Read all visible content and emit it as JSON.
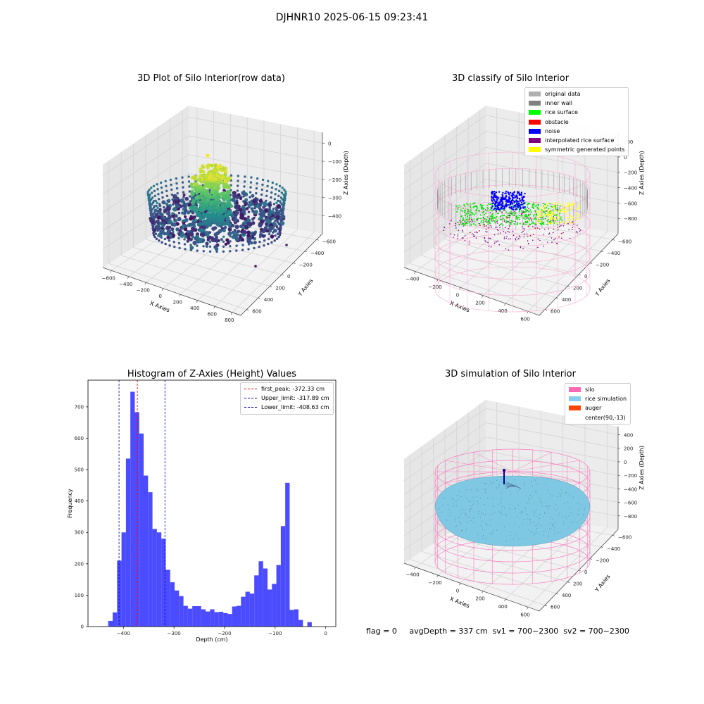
{
  "suptitle": "DJHNR10 2025-06-15 09:23:41",
  "status_line": {
    "flag": "flag = 0",
    "avg_depth": "avgDepth = 337 cm",
    "sv1": "sv1 = 700~2300",
    "sv2": "sv2 = 700~2300"
  },
  "colors": {
    "hist_bar": "#4b4bff",
    "first_peak_line": "#ff0000",
    "limit_line": "#0000cc",
    "silo_wire": "#f77fbf",
    "rice_sim": "#7ec8e3"
  },
  "chart_data": [
    {
      "type": "scatter3d",
      "title": "3D Plot of Silo Interior(row data)",
      "xlabel": "X Axies",
      "ylabel": "Y Axies",
      "zlabel": "Z Axies (Depth)",
      "x_ticks": [
        "−600",
        "−400",
        "−200",
        "0",
        "200",
        "400",
        "600",
        "800"
      ],
      "y_ticks": [
        "−600",
        "−400",
        "−200",
        "0",
        "200",
        "400",
        "600"
      ],
      "z_ticks": [
        "0",
        "−100",
        "−200",
        "−300",
        "−400"
      ],
      "xlim": [
        -600,
        800
      ],
      "ylim": [
        -600,
        600
      ],
      "zlim": [
        -450,
        0
      ],
      "colormap": "viridis"
    },
    {
      "type": "scatter3d",
      "title": "3D classify of Silo Interior",
      "xlabel": "X Axies",
      "ylabel": "Y Axies",
      "zlabel": "Z Axies (Depth)",
      "x_ticks": [
        "−400",
        "−200",
        "0",
        "200",
        "400",
        "600"
      ],
      "y_ticks": [
        "−600",
        "−400",
        "−200",
        "0",
        "200",
        "400",
        "600"
      ],
      "z_ticks": [
        "200",
        "0",
        "−200",
        "−400",
        "−600",
        "−800"
      ],
      "xlim": [
        -500,
        700
      ],
      "ylim": [
        -600,
        600
      ],
      "zlim": [
        -900,
        300
      ],
      "legend_position": "top-right",
      "legend": [
        {
          "label": "original data",
          "color": "#b0b0b0"
        },
        {
          "label": "inner wall",
          "color": "#808080"
        },
        {
          "label": "rice surface",
          "color": "#00ff00"
        },
        {
          "label": "obstacle",
          "color": "#ff0000"
        },
        {
          "label": "noise",
          "color": "#0000ff"
        },
        {
          "label": "interpolated rice surface",
          "color": "#800080"
        },
        {
          "label": "symmetric generated points",
          "color": "#ffff00"
        }
      ]
    },
    {
      "type": "bar",
      "title": "Histogram of Z-Axies (Height) Values",
      "xlabel": "Depth (cm)",
      "ylabel": "Frequency",
      "xlim": [
        -470,
        20
      ],
      "ylim": [
        0,
        785
      ],
      "x_ticks": [
        -400,
        -300,
        -200,
        -100,
        0
      ],
      "x_tick_labels": [
        "−400",
        "−300",
        "−200",
        "−100",
        "0"
      ],
      "y_ticks": [
        0,
        100,
        200,
        300,
        400,
        500,
        600,
        700
      ],
      "bin_width": 8.75,
      "bin_start": -447.5,
      "values": [
        1,
        1,
        18,
        45,
        210,
        300,
        535,
        748,
        683,
        615,
        481,
        428,
        311,
        300,
        280,
        181,
        141,
        115,
        97,
        66,
        57,
        65,
        65,
        55,
        48,
        55,
        46,
        47,
        43,
        40,
        64,
        66,
        95,
        111,
        105,
        163,
        208,
        185,
        118,
        136,
        196,
        320,
        458,
        53,
        55,
        21,
        0,
        14
      ],
      "vlines": [
        {
          "label": "first_peak: -372.33 cm",
          "x": -372.33,
          "color": "#ff0000"
        },
        {
          "label": "Upper_limit: -317.89 cm",
          "x": -317.89,
          "color": "#0000cc"
        },
        {
          "label": "Lower_limit: -408.63 cm",
          "x": -408.63,
          "color": "#0000cc"
        }
      ],
      "legend_position": "top-right"
    },
    {
      "type": "surface3d",
      "title": "3D simulation of Silo Interior",
      "xlabel": "X Axies",
      "ylabel": "Y Axies",
      "zlabel": "Z Axies (Depth)",
      "x_ticks": [
        "−400",
        "−200",
        "0",
        "200",
        "400",
        "600"
      ],
      "y_ticks": [
        "−600",
        "−400",
        "−200",
        "0",
        "200",
        "400",
        "600"
      ],
      "z_ticks": [
        "400",
        "200",
        "0",
        "−200",
        "−400",
        "−600",
        "−800"
      ],
      "xlim": [
        -500,
        700
      ],
      "ylim": [
        -600,
        600
      ],
      "zlim": [
        -900,
        500
      ],
      "legend_position": "top-right",
      "legend": [
        {
          "label": "silo",
          "color": "#ff69b4"
        },
        {
          "label": "rice simulation",
          "color": "#87ceeb"
        },
        {
          "label": "auger",
          "color": "#ff4500"
        },
        {
          "label": "center(90,-13)",
          "color": ""
        }
      ]
    }
  ]
}
